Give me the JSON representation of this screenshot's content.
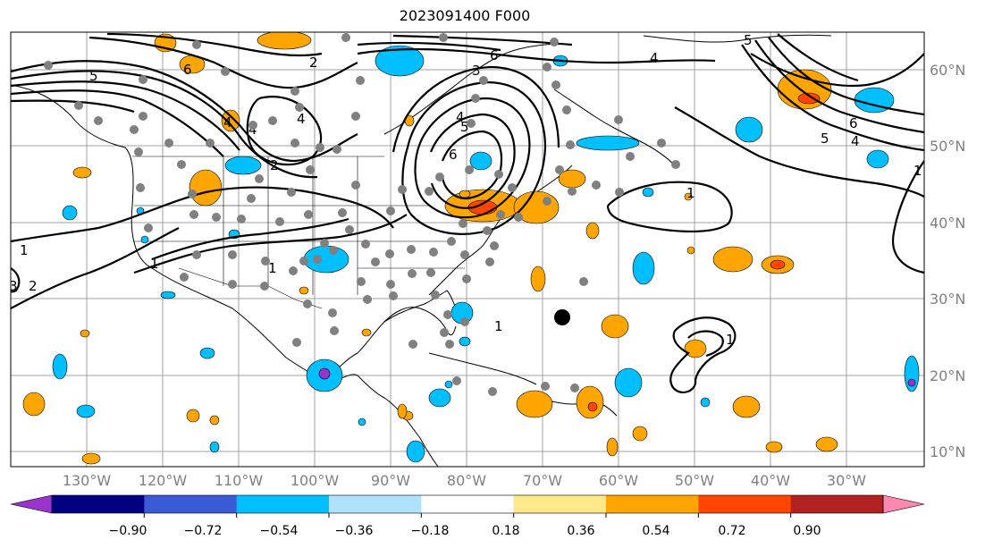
{
  "title": "2023091400 F000",
  "map": {
    "lon_labels": [
      "130°W",
      "120°W",
      "110°W",
      "100°W",
      "90°W",
      "80°W",
      "70°W",
      "60°W",
      "50°W",
      "40°W",
      "30°W"
    ],
    "lat_labels": [
      "60°N",
      "50°N",
      "40°N",
      "30°N",
      "20°N",
      "10°N"
    ],
    "contour_labels": [
      "5",
      "6",
      "2",
      "4",
      "4",
      "4",
      "2",
      "6",
      "5",
      "3",
      "6",
      "4",
      "5",
      "6",
      "5",
      "4",
      "1",
      "1",
      "1",
      "1",
      "1",
      "2",
      "3",
      "4",
      "1",
      "1"
    ],
    "marker": "storm-center-marker"
  },
  "colorbar": {
    "ticks": [
      "−0.90",
      "−0.72",
      "−0.54",
      "−0.36",
      "−0.18",
      "0.18",
      "0.36",
      "0.54",
      "0.72",
      "0.90"
    ],
    "colors": [
      "#9933cc",
      "#000080",
      "#3b5bd6",
      "#00bfff",
      "#b0e2ff",
      "#ffffff",
      "#ffe88a",
      "#ffa500",
      "#ff4500",
      "#b22222",
      "#ff88b0"
    ]
  }
}
